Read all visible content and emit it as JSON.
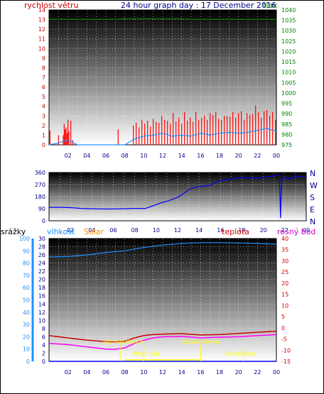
{
  "header": {
    "title": "24 hour graph day : 17 December 2016",
    "left_label": "rychlost větru",
    "right_label": "tlak"
  },
  "panel_wind": {
    "y_left_ticks": [
      "0",
      "1",
      "2",
      "3",
      "4",
      "5",
      "6",
      "7",
      "8",
      "9",
      "10",
      "11",
      "12",
      "13",
      "14"
    ],
    "y_right_ticks": [
      "975",
      "980",
      "985",
      "990",
      "995",
      "1000",
      "1005",
      "1010",
      "1015",
      "1020",
      "1025",
      "1030",
      "1035",
      "1040"
    ],
    "x_ticks": [
      "02",
      "04",
      "06",
      "08",
      "10",
      "12",
      "14",
      "16",
      "18",
      "20",
      "22",
      "00"
    ]
  },
  "panel_direction": {
    "y_left_ticks": [
      "0",
      "90",
      "180",
      "270",
      "360"
    ],
    "compass": [
      "N",
      "W",
      "S",
      "E",
      "N"
    ],
    "x_ticks": [
      "02",
      "04",
      "06",
      "08",
      "10",
      "12",
      "14",
      "16",
      "18",
      "20",
      "22",
      "00"
    ]
  },
  "panel_climate": {
    "labels": {
      "rain": "srážky",
      "humidity": "vlhkost",
      "solar": "Solar",
      "temp": "teplota",
      "dew": "rosný bod"
    },
    "y_rain_ticks": [
      "0",
      "10",
      "20",
      "30",
      "40",
      "50",
      "60",
      "70",
      "80",
      "90",
      "100"
    ],
    "y_humidity_ticks": [
      "0",
      "2",
      "4",
      "6",
      "8",
      "10",
      "12",
      "14",
      "16",
      "18",
      "20",
      "22",
      "24",
      "26",
      "28",
      "30"
    ],
    "y_temp_ticks": [
      "-15",
      "-10",
      "-5",
      "0",
      "5",
      "10",
      "15",
      "20",
      "25",
      "30",
      "35",
      "40"
    ],
    "x_ticks": [
      "02",
      "04",
      "06",
      "08",
      "10",
      "12",
      "14",
      "16",
      "18",
      "20",
      "22",
      "00"
    ],
    "annotations": {
      "sunrise": "východ slunce",
      "sunset": "západ slunce",
      "moonset": "Moon Set",
      "moonrise": "Moon Rise"
    }
  },
  "colors": {
    "wind_speed": "#ff0000",
    "wind_avg": "#1e90ff",
    "pressure": "#008000",
    "direction": "#0000ff",
    "humidity": "#1e90ff",
    "temperature": "#cc0000",
    "dewpoint": "#ff00ff",
    "annotation": "#ffff00"
  },
  "chart_data": [
    {
      "type": "bar",
      "x_unit": "hour",
      "xlim": [
        0,
        24
      ],
      "ylim_left": [
        0,
        14
      ],
      "ylim_right": [
        975,
        1040
      ],
      "series": [
        {
          "axis": "left",
          "kind": "bar",
          "x": [
            0.1,
            1.0,
            1.5,
            1.6,
            1.7,
            1.8,
            1.9,
            2.0,
            2.1,
            2.3,
            2.5,
            7.3,
            8.9,
            9.2,
            9.5,
            9.8,
            10.1,
            10.4,
            10.7,
            11.0,
            11.3,
            11.6,
            11.9,
            12.2,
            12.5,
            12.8,
            13.1,
            13.4,
            13.7,
            14.0,
            14.3,
            14.6,
            14.9,
            15.2,
            15.5,
            15.8,
            16.1,
            16.4,
            16.7,
            17.0,
            17.3,
            17.6,
            17.9,
            18.2,
            18.5,
            18.8,
            19.1,
            19.4,
            19.7,
            20.0,
            20.3,
            20.6,
            20.9,
            21.2,
            21.5,
            21.8,
            22.1,
            22.4,
            22.7,
            23.0,
            23.3,
            23.6,
            23.9
          ],
          "values": [
            1.5,
            1.0,
            1.0,
            2.2,
            1.6,
            1.8,
            1.2,
            2.6,
            1.4,
            2.5,
            0.5,
            1.6,
            2.0,
            2.3,
            1.8,
            2.6,
            2.2,
            2.5,
            1.9,
            2.7,
            2.4,
            2.3,
            3.0,
            2.6,
            2.5,
            2.2,
            3.3,
            2.4,
            2.8,
            2.2,
            3.4,
            2.5,
            2.8,
            2.4,
            3.4,
            2.6,
            2.8,
            3.0,
            2.6,
            3.3,
            3.1,
            3.4,
            2.7,
            2.6,
            3.0,
            3.0,
            2.9,
            3.4,
            2.8,
            3.3,
            3.5,
            2.6,
            3.3,
            3.1,
            3.2,
            4.1,
            3.4,
            2.8,
            3.5,
            3.6,
            3.0,
            3.4,
            2.6
          ]
        },
        {
          "axis": "left",
          "kind": "line",
          "x": [
            0,
            1,
            2,
            3,
            4,
            5,
            6,
            7,
            8,
            9,
            10,
            11,
            12,
            13,
            14,
            15,
            16,
            17,
            18,
            19,
            20,
            21,
            22,
            23,
            24
          ],
          "values": [
            0,
            0.2,
            0.5,
            0,
            0,
            0,
            0,
            0,
            0,
            0.6,
            0.9,
            1.0,
            1.2,
            0.9,
            1.0,
            0.9,
            1.2,
            1.0,
            1.2,
            1.3,
            1.2,
            1.3,
            1.5,
            1.7,
            1.4
          ]
        },
        {
          "axis": "right",
          "kind": "line",
          "x": [
            0,
            1,
            2,
            3,
            4,
            5,
            6,
            7,
            8,
            9,
            10,
            11,
            12,
            13,
            14,
            15,
            16,
            17,
            18,
            19,
            20,
            21,
            22,
            23,
            24
          ],
          "values": [
            1035.5,
            1035.5,
            1035.5,
            1035.5,
            1035.5,
            1035.5,
            1035.5,
            1035.5,
            1035.8,
            1035.8,
            1035.8,
            1035.8,
            1035.8,
            1035.8,
            1035.8,
            1035.5,
            1035.5,
            1035.5,
            1035.5,
            1035.5,
            1035.5,
            1035.5,
            1035.5,
            1035.5,
            1035.5
          ]
        }
      ]
    },
    {
      "type": "line",
      "x_unit": "hour",
      "xlim": [
        0,
        24
      ],
      "ylim": [
        0,
        360
      ],
      "series": [
        {
          "x": [
            0,
            1,
            2,
            3,
            4,
            5,
            6,
            7,
            8,
            9,
            10,
            10.5,
            11,
            11.5,
            12,
            12.5,
            13,
            13.5,
            14,
            14.5,
            15,
            15.5,
            16,
            16.5,
            17,
            17.5,
            18,
            18.5,
            19,
            19.5,
            20,
            20.5,
            21,
            21.5,
            21.6,
            21.7,
            22,
            22.5,
            23,
            23.5,
            24
          ],
          "values": [
            100,
            100,
            98,
            92,
            90,
            88,
            88,
            90,
            92,
            92,
            120,
            135,
            145,
            160,
            175,
            200,
            230,
            245,
            255,
            260,
            265,
            285,
            300,
            305,
            310,
            320,
            322,
            320,
            318,
            320,
            322,
            330,
            335,
            340,
            20,
            300,
            325,
            310,
            335,
            330,
            330
          ]
        }
      ]
    },
    {
      "type": "line",
      "x_unit": "hour",
      "xlim": [
        0,
        24
      ],
      "ylim_rain": [
        0,
        100
      ],
      "ylim_humidity": [
        0,
        30
      ],
      "ylim_temp": [
        -15,
        40
      ],
      "series": [
        {
          "axis": "humidity",
          "x": [
            0,
            2,
            4,
            6,
            8,
            10,
            12,
            14,
            16,
            18,
            20,
            22,
            24
          ],
          "values": [
            25.5,
            25.6,
            26.0,
            26.6,
            27.0,
            27.8,
            28.4,
            28.8,
            29.0,
            29.0,
            28.9,
            28.8,
            28.6
          ]
        },
        {
          "axis": "temp",
          "x": [
            0,
            2,
            4,
            6,
            7,
            8,
            9,
            10,
            11,
            12,
            14,
            16,
            18,
            20,
            22,
            24
          ],
          "values": [
            -3.5,
            -4.5,
            -5.5,
            -6.2,
            -6.3,
            -6.0,
            -4.5,
            -3.5,
            -3.0,
            -2.8,
            -2.6,
            -3.2,
            -3.0,
            -2.5,
            -2.0,
            -1.5
          ]
        },
        {
          "axis": "temp",
          "x": [
            0,
            2,
            4,
            6,
            7,
            8,
            9,
            10,
            11,
            12,
            14,
            16,
            18,
            20,
            22,
            24
          ],
          "values": [
            -7.0,
            -7.5,
            -8.5,
            -9.5,
            -9.6,
            -9.0,
            -7.0,
            -5.5,
            -4.5,
            -4.0,
            -3.8,
            -4.5,
            -4.2,
            -4.0,
            -3.5,
            -3.0
          ]
        },
        {
          "axis": "rain",
          "x": [
            0,
            24
          ],
          "values": [
            0,
            0
          ]
        }
      ],
      "events": [
        {
          "x": 7.5,
          "label_ref": "sunrise"
        },
        {
          "x": 16.0,
          "label_ref": "sunset"
        },
        {
          "x": 10.0,
          "label_ref": "moonset"
        },
        {
          "x": 20.5,
          "label_ref": "moonrise"
        }
      ]
    }
  ]
}
